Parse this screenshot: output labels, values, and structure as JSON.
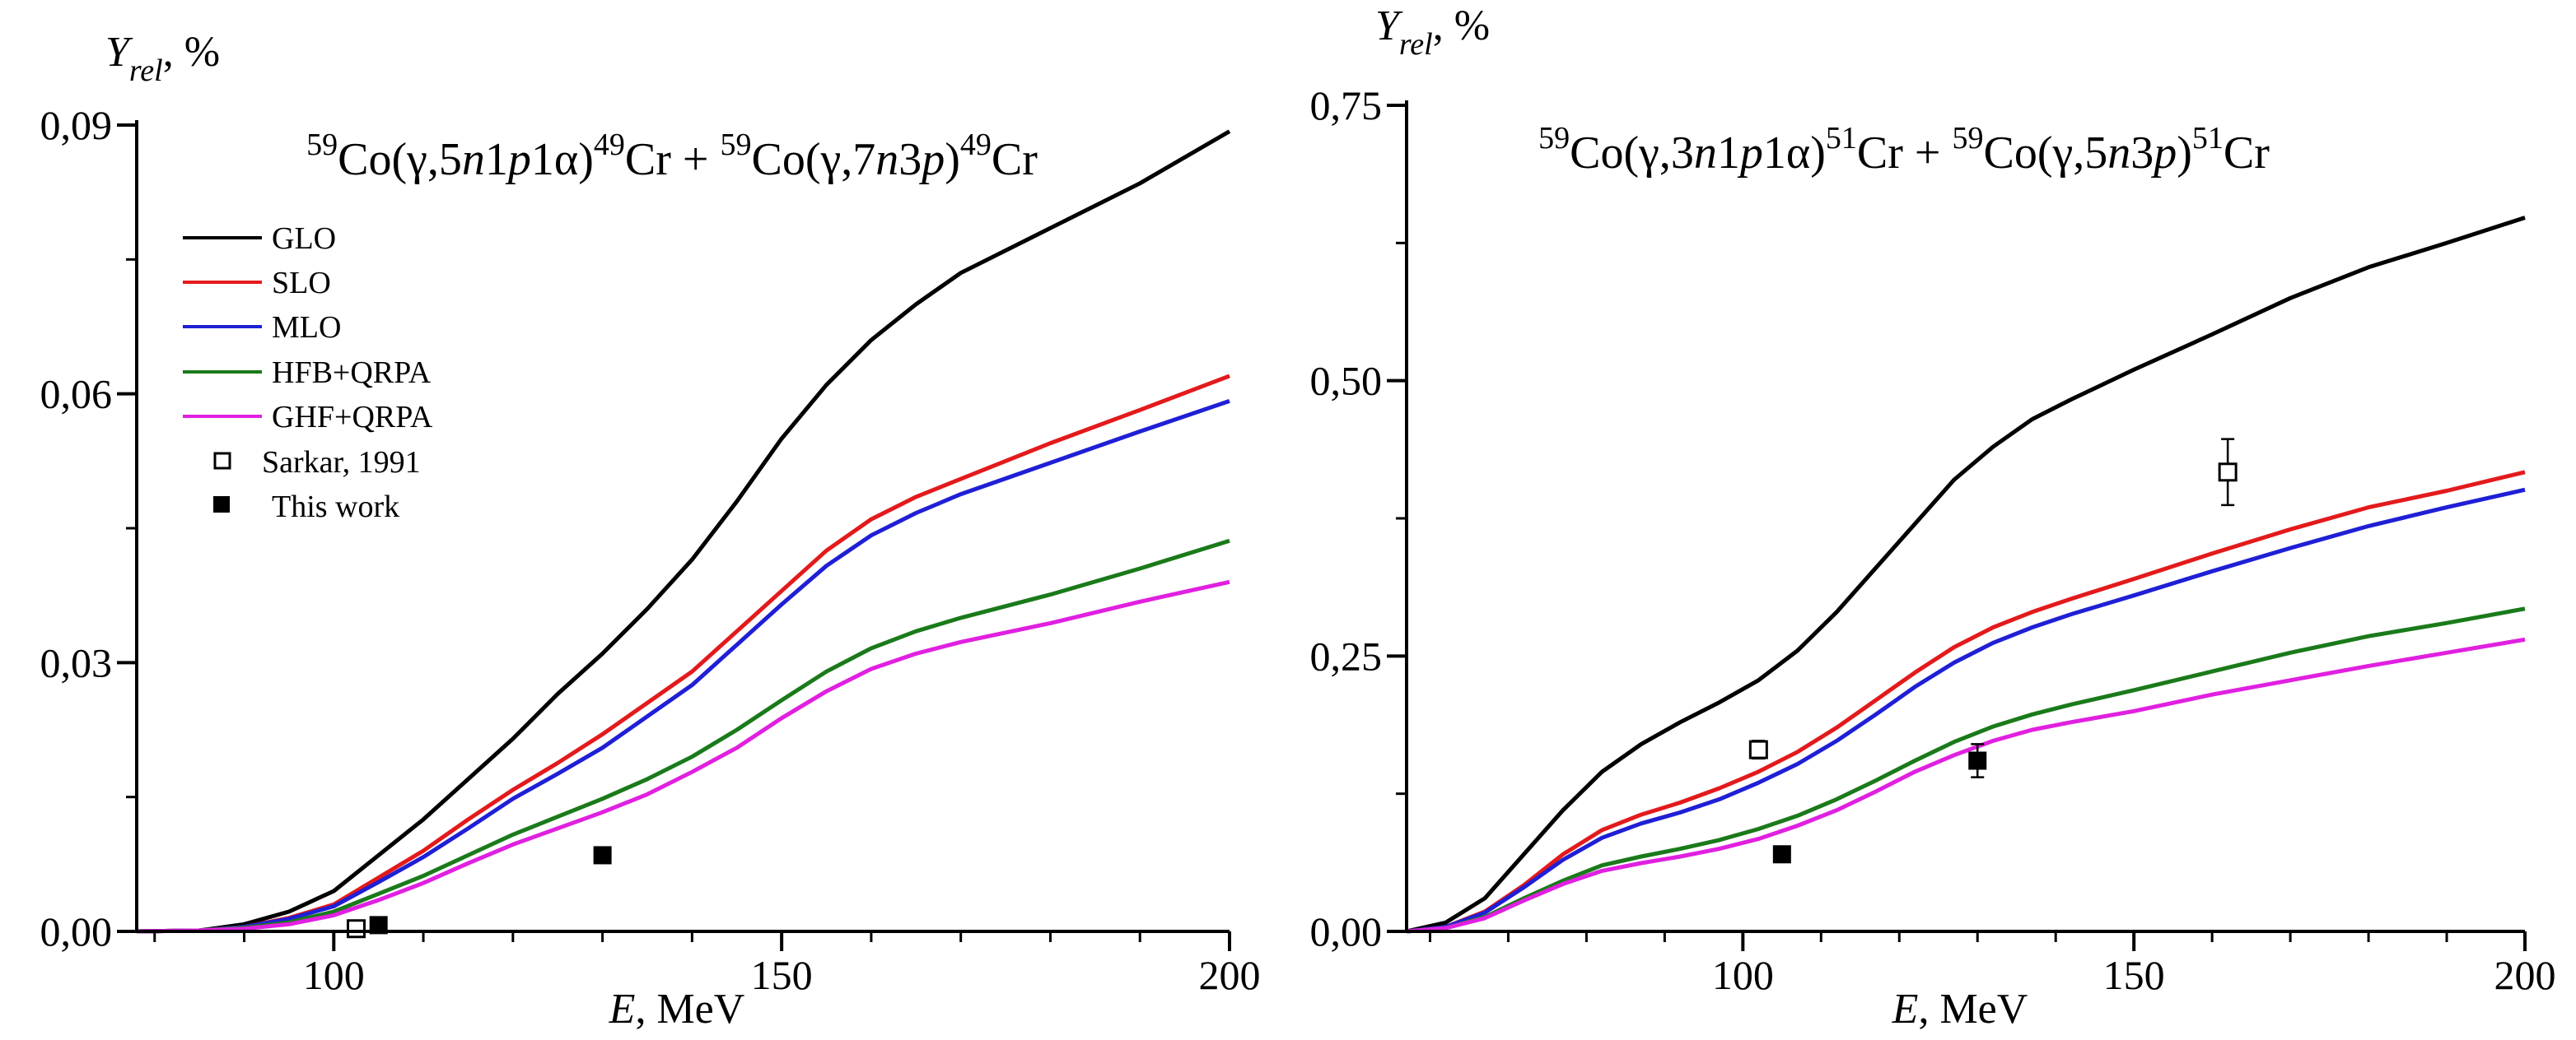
{
  "chart_data": [
    {
      "type": "line",
      "title": {
        "left": {
          "a1": "59",
          "b1": "Co(γ,5",
          "c1": "n",
          "d1": "1",
          "e1": "p",
          "f1": "1α)",
          "g1": "49",
          "h1": "Cr"
        },
        "plus": "+",
        "right": {
          "a1": "59",
          "b1": "Co(γ,7",
          "c1": "n",
          "d1": "3",
          "e1": "p",
          "f1": ")",
          "g1": "49",
          "h1": "Cr"
        }
      },
      "ylabel": {
        "var": "Y",
        "sub": "rel",
        "unit": ", %"
      },
      "xlabel": {
        "var": "E",
        "unit": ", MeV"
      },
      "xlim": [
        78,
        200
      ],
      "ylim": [
        0,
        0.09
      ],
      "xticks": [
        100,
        150,
        200
      ],
      "xtick_labels": [
        "100",
        "150",
        "200"
      ],
      "yticks": [
        0,
        0.03,
        0.06,
        0.09
      ],
      "ytick_labels": [
        "0,00",
        "0,03",
        "0,06",
        "0,09"
      ],
      "legend": {
        "position": "top-left",
        "entries": [
          {
            "label": "GLO",
            "color": "#000000",
            "kind": "line"
          },
          {
            "label": "SLO",
            "color": "#e31a1c",
            "kind": "line"
          },
          {
            "label": "MLO",
            "color": "#1f1fd6",
            "kind": "line"
          },
          {
            "label": "HFB+QRPA",
            "color": "#1a7a1a",
            "kind": "line"
          },
          {
            "label": "GHF+QRPA",
            "color": "#e020e0",
            "kind": "line"
          },
          {
            "label": "Sarkar, 1991",
            "kind": "open-square"
          },
          {
            "label": "This work",
            "kind": "filled-square"
          }
        ]
      },
      "x": [
        78,
        85,
        90,
        95,
        100,
        105,
        110,
        115,
        120,
        125,
        130,
        135,
        140,
        145,
        150,
        155,
        160,
        165,
        170,
        180,
        190,
        200
      ],
      "series": [
        {
          "name": "GLO",
          "color": "#000000",
          "values": [
            0,
            0.0001,
            0.0008,
            0.0022,
            0.0045,
            0.0085,
            0.0125,
            0.017,
            0.0215,
            0.0265,
            0.031,
            0.036,
            0.0415,
            0.048,
            0.055,
            0.061,
            0.066,
            0.07,
            0.0735,
            0.0785,
            0.0835,
            0.0893
          ]
        },
        {
          "name": "SLO",
          "color": "#e31a1c",
          "values": [
            0,
            0.0001,
            0.0005,
            0.0015,
            0.003,
            0.006,
            0.009,
            0.0125,
            0.0158,
            0.0188,
            0.022,
            0.0255,
            0.029,
            0.0335,
            0.038,
            0.0425,
            0.046,
            0.0485,
            0.0505,
            0.0545,
            0.0582,
            0.062
          ]
        },
        {
          "name": "MLO",
          "color": "#1f1fd6",
          "values": [
            0,
            0.0001,
            0.0005,
            0.0014,
            0.0028,
            0.0055,
            0.0083,
            0.0115,
            0.0148,
            0.0176,
            0.0205,
            0.024,
            0.0275,
            0.032,
            0.0365,
            0.0408,
            0.0442,
            0.0467,
            0.0488,
            0.0523,
            0.0558,
            0.0592
          ]
        },
        {
          "name": "HFB+QRPA",
          "color": "#1a7a1a",
          "values": [
            0,
            0.0001,
            0.0004,
            0.001,
            0.0022,
            0.0042,
            0.0062,
            0.0085,
            0.0108,
            0.0128,
            0.0148,
            0.017,
            0.0195,
            0.0225,
            0.0258,
            0.029,
            0.0316,
            0.0335,
            0.035,
            0.0376,
            0.0405,
            0.0436
          ]
        },
        {
          "name": "GHF+QRPA",
          "color": "#e020e0",
          "values": [
            0,
            0.0001,
            0.0003,
            0.0008,
            0.0018,
            0.0035,
            0.0054,
            0.0076,
            0.0097,
            0.0115,
            0.0133,
            0.0153,
            0.0178,
            0.0205,
            0.0238,
            0.0268,
            0.0293,
            0.031,
            0.0323,
            0.0344,
            0.0368,
            0.039
          ]
        }
      ],
      "points": [
        {
          "name": "Sarkar, 1991",
          "kind": "open-square",
          "x": 102.5,
          "y": 0.0003
        },
        {
          "name": "This work",
          "kind": "filled-square",
          "x": 105,
          "y": 0.0007
        },
        {
          "name": "This work",
          "kind": "filled-square",
          "x": 130,
          "y": 0.0085
        }
      ]
    },
    {
      "type": "line",
      "title": {
        "left": {
          "a1": "59",
          "b1": "Co(γ,3",
          "c1": "n",
          "d1": "1",
          "e1": "p",
          "f1": "1α)",
          "g1": "51",
          "h1": "Cr"
        },
        "plus": "+",
        "right": {
          "a1": "59",
          "b1": "Co(γ,5",
          "c1": "n",
          "d1": "3",
          "e1": "p",
          "f1": ")",
          "g1": "51",
          "h1": "Cr"
        }
      },
      "ylabel": {
        "var": "Y",
        "sub": "rel",
        "unit": ", %"
      },
      "xlabel": {
        "var": "E",
        "unit": ", MeV"
      },
      "xlim": [
        57,
        200
      ],
      "ylim": [
        0,
        0.75
      ],
      "xticks": [
        100,
        150,
        200
      ],
      "xtick_labels": [
        "100",
        "150",
        "200"
      ],
      "yticks": [
        0,
        0.25,
        0.5,
        0.75
      ],
      "ytick_labels": [
        "0,00",
        "0,25",
        "0,50",
        "0,75"
      ],
      "x": [
        57,
        62,
        67,
        72,
        77,
        82,
        87,
        92,
        97,
        102,
        107,
        112,
        117,
        122,
        127,
        132,
        137,
        142,
        150,
        160,
        170,
        180,
        190,
        200
      ],
      "series": [
        {
          "name": "GLO",
          "color": "#000000",
          "values": [
            0,
            0.008,
            0.03,
            0.07,
            0.11,
            0.145,
            0.17,
            0.19,
            0.208,
            0.228,
            0.255,
            0.29,
            0.33,
            0.37,
            0.41,
            0.44,
            0.465,
            0.483,
            0.51,
            0.542,
            0.575,
            0.603,
            0.625,
            0.648
          ]
        },
        {
          "name": "SLO",
          "color": "#e31a1c",
          "values": [
            0,
            0.004,
            0.018,
            0.042,
            0.07,
            0.092,
            0.106,
            0.117,
            0.13,
            0.145,
            0.163,
            0.185,
            0.21,
            0.235,
            0.258,
            0.276,
            0.29,
            0.302,
            0.32,
            0.343,
            0.365,
            0.385,
            0.4,
            0.417
          ]
        },
        {
          "name": "MLO",
          "color": "#1f1fd6",
          "values": [
            0,
            0.004,
            0.017,
            0.04,
            0.065,
            0.085,
            0.098,
            0.108,
            0.12,
            0.135,
            0.152,
            0.173,
            0.197,
            0.222,
            0.244,
            0.262,
            0.276,
            0.288,
            0.305,
            0.327,
            0.348,
            0.368,
            0.385,
            0.401
          ]
        },
        {
          "name": "HFB+QRPA",
          "color": "#1a7a1a",
          "values": [
            0,
            0.003,
            0.013,
            0.03,
            0.046,
            0.06,
            0.068,
            0.075,
            0.083,
            0.093,
            0.105,
            0.12,
            0.137,
            0.155,
            0.172,
            0.186,
            0.197,
            0.206,
            0.219,
            0.236,
            0.253,
            0.268,
            0.28,
            0.293
          ]
        },
        {
          "name": "GHF+QRPA",
          "color": "#e020e0",
          "values": [
            0,
            0.003,
            0.012,
            0.028,
            0.043,
            0.055,
            0.062,
            0.068,
            0.075,
            0.084,
            0.096,
            0.11,
            0.127,
            0.145,
            0.16,
            0.173,
            0.183,
            0.19,
            0.2,
            0.215,
            0.228,
            0.241,
            0.253,
            0.265
          ]
        }
      ],
      "points": [
        {
          "name": "Sarkar, 1991",
          "kind": "open-square",
          "x": 102,
          "y": 0.165,
          "err": 0.008
        },
        {
          "name": "Sarkar, 1991",
          "kind": "open-square",
          "x": 162,
          "y": 0.417,
          "err": 0.03
        },
        {
          "name": "This work",
          "kind": "filled-square",
          "x": 105,
          "y": 0.07
        },
        {
          "name": "This work",
          "kind": "filled-square",
          "x": 130,
          "y": 0.155,
          "err": 0.015
        }
      ]
    }
  ]
}
